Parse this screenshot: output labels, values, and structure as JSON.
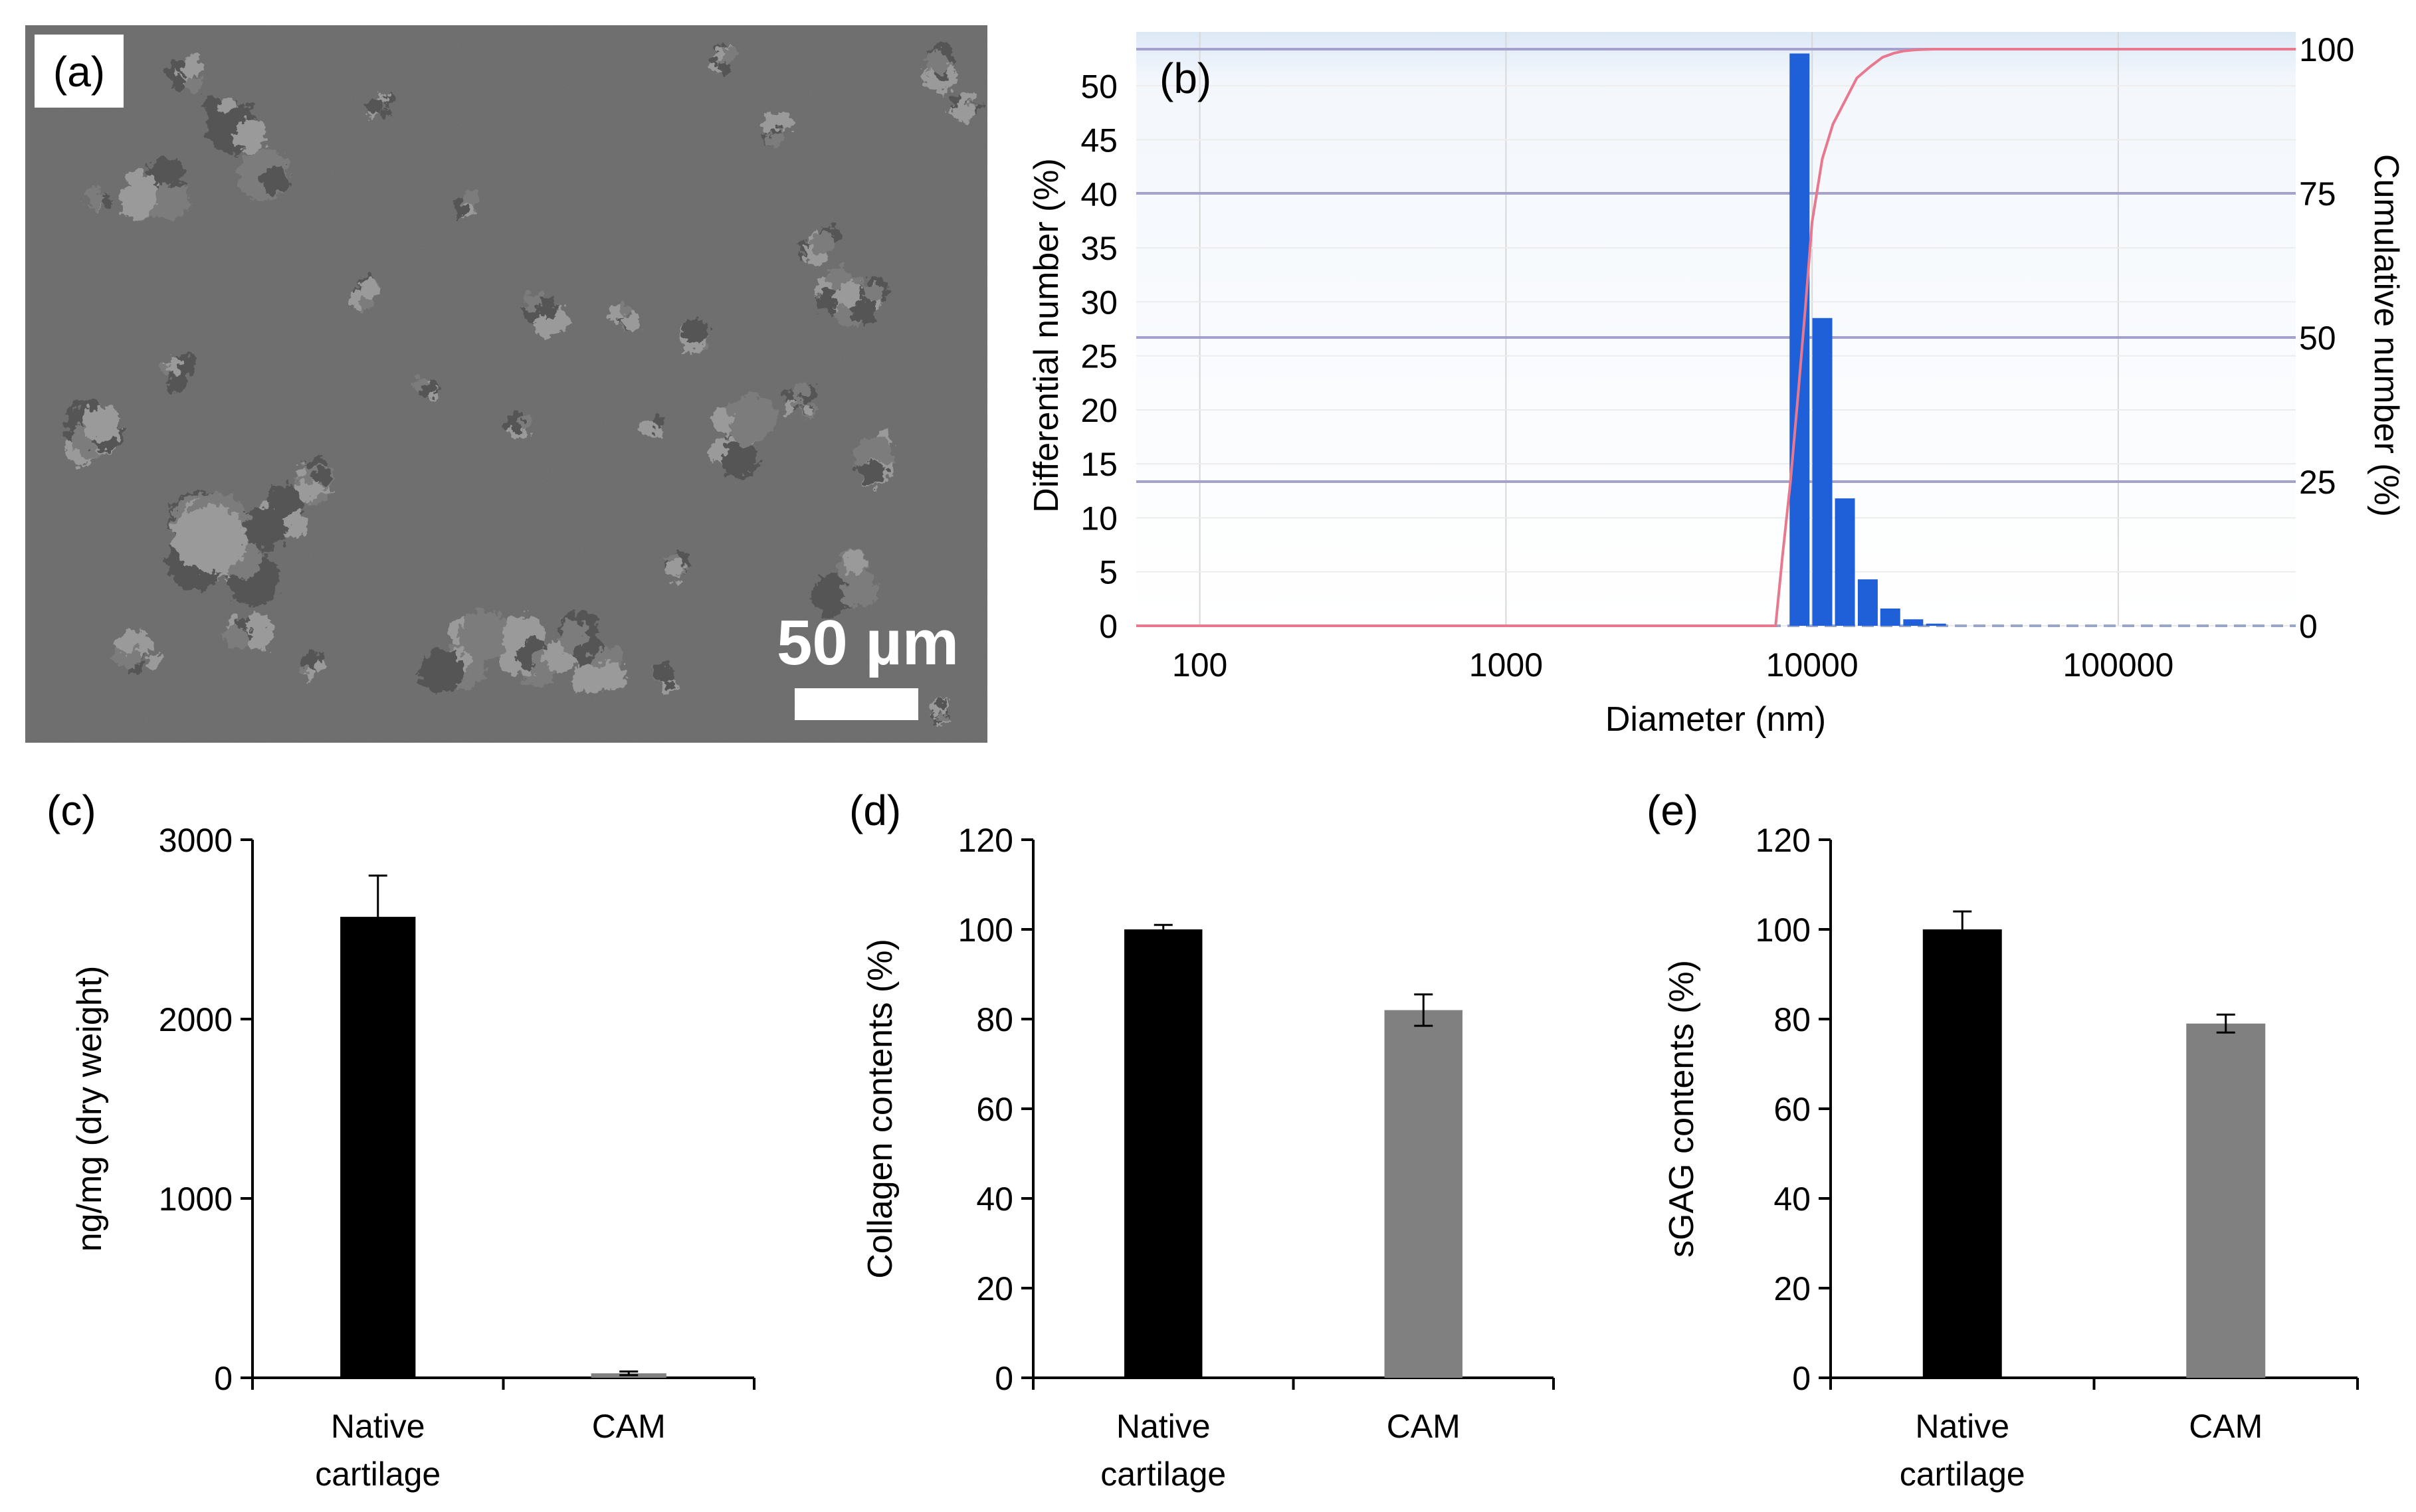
{
  "panels": {
    "a": {
      "label": "(a)",
      "scale_bar_text": "50 µm"
    },
    "b": {
      "label": "(b)"
    },
    "c": {
      "label": "(c)"
    },
    "d": {
      "label": "(d)"
    },
    "e": {
      "label": "(e)"
    }
  },
  "colors": {
    "blue_bar": "#1f5fd8",
    "cumulative_line": "#e8788e",
    "native_bar": "#000000",
    "cam_bar": "#808080",
    "sem_background": "#6a6a6a",
    "particle": "#4a4a4a"
  },
  "chart_data": [
    {
      "id": "b",
      "type": "bar",
      "title": "",
      "xlabel": "Diameter (nm)",
      "ylabel": "Differential number (%)",
      "y2label": "Cumulative number (%)",
      "xscale": "log",
      "xlim": [
        62,
        380000
      ],
      "ylim": [
        0,
        55
      ],
      "y2lim": [
        0,
        103
      ],
      "x_ticks": [
        100,
        1000,
        10000,
        100000
      ],
      "x_tick_labels": [
        "100",
        "1000",
        "10000",
        "100000"
      ],
      "y_ticks": [
        0,
        5,
        10,
        15,
        20,
        25,
        30,
        35,
        40,
        45,
        50
      ],
      "y_tick_labels": [
        "0",
        "5",
        "10",
        "15",
        "20",
        "25",
        "30",
        "35",
        "40",
        "45",
        "50"
      ],
      "y2_ticks": [
        0,
        25,
        50,
        75,
        100
      ],
      "y2_tick_labels": [
        "0",
        "25",
        "50",
        "75",
        "100"
      ],
      "bars": {
        "x": [
          9100,
          10800,
          12800,
          15200,
          18000,
          21400,
          25400
        ],
        "values": [
          53,
          28.5,
          11.8,
          4.3,
          1.6,
          0.6,
          0.2
        ]
      },
      "cumulative": {
        "x": [
          62,
          7600,
          8000,
          8500,
          9000,
          9500,
          10000,
          10800,
          11700,
          12800,
          14000,
          15500,
          17000,
          18500,
          20000,
          22000,
          25000,
          30000,
          40000,
          100000,
          380000
        ],
        "values": [
          0,
          0,
          12,
          25,
          40,
          55,
          70,
          81,
          87,
          91,
          95,
          97,
          98.6,
          99.3,
          99.7,
          99.9,
          100,
          100,
          100,
          100,
          100
        ]
      },
      "legend": "none"
    },
    {
      "id": "c",
      "type": "bar",
      "title": "",
      "xlabel": "",
      "ylabel": "ng/mg (dry weight)",
      "categories": [
        "Native cartilage",
        "CAM"
      ],
      "category_lines": [
        [
          "Native",
          "cartilage"
        ],
        [
          "CAM"
        ]
      ],
      "values": [
        2570,
        25
      ],
      "errors": [
        230,
        10
      ],
      "ylim": [
        0,
        3000
      ],
      "y_ticks": [
        0,
        1000,
        2000,
        3000
      ],
      "y_tick_labels": [
        "0",
        "1000",
        "2000",
        "3000"
      ],
      "bar_colors": [
        "#000000",
        "#808080"
      ]
    },
    {
      "id": "d",
      "type": "bar",
      "title": "",
      "xlabel": "",
      "ylabel": "Collagen contents (%)",
      "categories": [
        "Native cartilage",
        "CAM"
      ],
      "category_lines": [
        [
          "Native",
          "cartilage"
        ],
        [
          "CAM"
        ]
      ],
      "values": [
        100,
        82
      ],
      "errors": [
        1,
        3.5
      ],
      "ylim": [
        0,
        120
      ],
      "y_ticks": [
        0,
        20,
        40,
        60,
        80,
        100,
        120
      ],
      "y_tick_labels": [
        "0",
        "20",
        "40",
        "60",
        "80",
        "100",
        "120"
      ],
      "bar_colors": [
        "#000000",
        "#808080"
      ]
    },
    {
      "id": "e",
      "type": "bar",
      "title": "",
      "xlabel": "",
      "ylabel": "sGAG contents (%)",
      "categories": [
        "Native cartilage",
        "CAM"
      ],
      "category_lines": [
        [
          "Native",
          "cartilage"
        ],
        [
          "CAM"
        ]
      ],
      "values": [
        100,
        79
      ],
      "errors": [
        4,
        2
      ],
      "ylim": [
        0,
        120
      ],
      "y_ticks": [
        0,
        20,
        40,
        60,
        80,
        100,
        120
      ],
      "y_tick_labels": [
        "0",
        "20",
        "40",
        "60",
        "80",
        "100",
        "120"
      ],
      "bar_colors": [
        "#000000",
        "#808080"
      ]
    }
  ]
}
